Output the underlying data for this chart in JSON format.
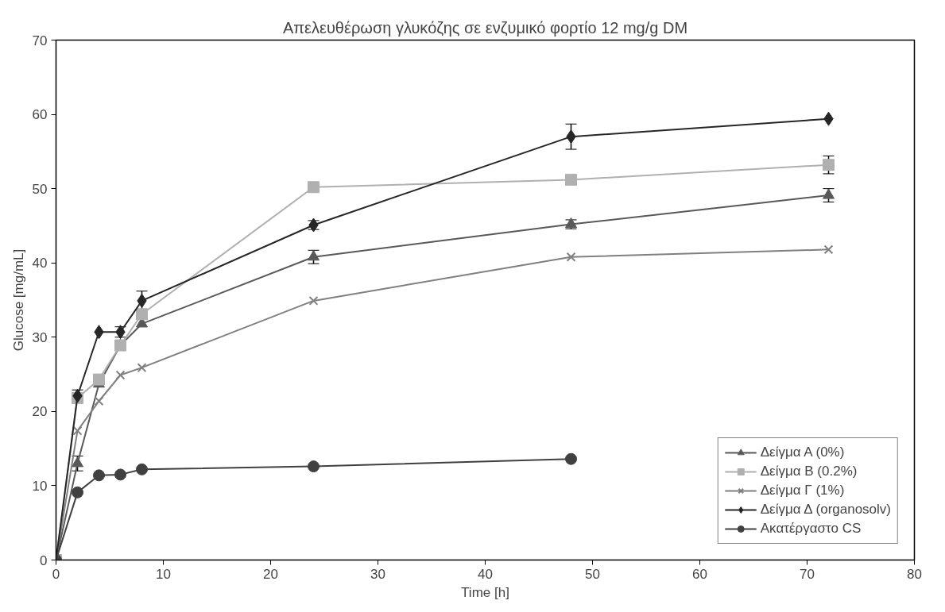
{
  "chart_data": {
    "type": "line",
    "title": "Απελευθέρωση γλυκόζης σε ενζυμικό φορτίο 12 mg/g DM",
    "xlabel": "Time [h]",
    "ylabel": "Glucose [mg/mL]",
    "xlim": [
      0,
      80
    ],
    "xticks": [
      0,
      10,
      20,
      30,
      40,
      50,
      60,
      70,
      80
    ],
    "ylim": [
      0,
      70
    ],
    "yticks": [
      0,
      10,
      20,
      30,
      40,
      50,
      60,
      70
    ],
    "grid": false,
    "legend": "bottom right",
    "line_style": "solid",
    "series": [
      {
        "name": "Δείγμα Α (0%)",
        "color": "#595959",
        "marker": "triangle",
        "x": [
          0,
          2,
          4,
          6,
          8,
          24,
          48,
          72
        ],
        "values": [
          0,
          13.0,
          23.7,
          28.9,
          31.8,
          40.8,
          45.2,
          49.1
        ],
        "errors": [
          null,
          1.0,
          null,
          null,
          null,
          0.9,
          0.6,
          0.9
        ]
      },
      {
        "name": "Δείγμα Β (0.2%)",
        "color": "#b0b0b0",
        "marker": "square",
        "x": [
          0,
          2,
          4,
          6,
          8,
          24,
          48,
          72
        ],
        "values": [
          0,
          21.8,
          24.3,
          28.9,
          33.1,
          50.2,
          51.2,
          53.2
        ],
        "errors": [
          null,
          null,
          null,
          null,
          null,
          null,
          null,
          1.2
        ]
      },
      {
        "name": "Δείγμα Γ (1%)",
        "color": "#808080",
        "marker": "cross",
        "x": [
          0,
          2,
          4,
          6,
          8,
          24,
          48,
          72
        ],
        "values": [
          0,
          17.4,
          21.4,
          24.9,
          25.9,
          34.9,
          40.8,
          41.8
        ]
      },
      {
        "name": "Δείγμα Δ (organosolv)",
        "color": "#262626",
        "marker": "diamond",
        "x": [
          0,
          2,
          4,
          6,
          8,
          24,
          48,
          72
        ],
        "values": [
          0,
          22.1,
          30.7,
          30.7,
          34.9,
          45.1,
          57.0,
          59.4
        ],
        "errors": [
          null,
          0.8,
          null,
          0.7,
          1.3,
          0.6,
          1.7,
          null
        ]
      },
      {
        "name": "Ακατέργαστο CS",
        "color": "#404040",
        "marker": "circle",
        "x": [
          0,
          2,
          4,
          6,
          8,
          24,
          48
        ],
        "values": [
          0,
          9.1,
          11.4,
          11.5,
          12.2,
          12.6,
          13.6
        ]
      }
    ]
  }
}
